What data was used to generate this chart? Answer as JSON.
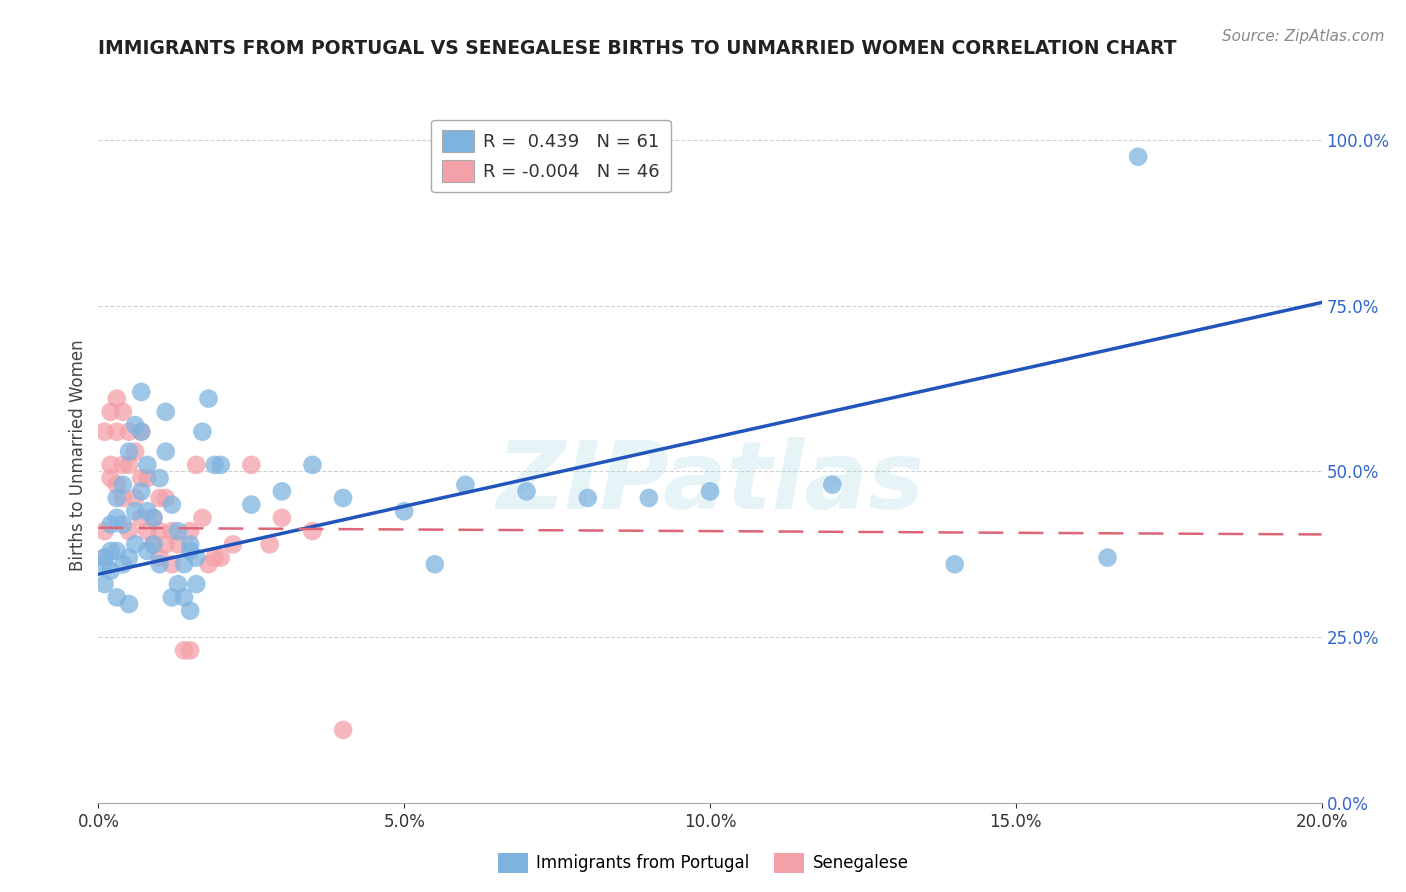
{
  "title": "IMMIGRANTS FROM PORTUGAL VS SENEGALESE BIRTHS TO UNMARRIED WOMEN CORRELATION CHART",
  "source": "Source: ZipAtlas.com",
  "ylabel": "Births to Unmarried Women",
  "xlim": [
    0.0,
    0.2
  ],
  "ylim": [
    0.0,
    1.05
  ],
  "blue_R": 0.439,
  "blue_N": 61,
  "pink_R": -0.004,
  "pink_N": 46,
  "legend_label_blue": "Immigrants from Portugal",
  "legend_label_pink": "Senegalese",
  "blue_color": "#7EB3E0",
  "pink_color": "#F4A0A8",
  "trend_blue": "#2255BB",
  "trend_pink": "#DD6677",
  "blue_trend_x0": 0.0,
  "blue_trend_y0": 0.345,
  "blue_trend_x1": 0.2,
  "blue_trend_y1": 0.755,
  "pink_trend_x0": 0.0,
  "pink_trend_y0": 0.415,
  "pink_trend_x1": 0.2,
  "pink_trend_y1": 0.405,
  "blue_x": [
    0.001,
    0.001,
    0.001,
    0.002,
    0.002,
    0.002,
    0.003,
    0.003,
    0.003,
    0.003,
    0.004,
    0.004,
    0.004,
    0.005,
    0.005,
    0.005,
    0.006,
    0.006,
    0.006,
    0.007,
    0.007,
    0.007,
    0.008,
    0.008,
    0.008,
    0.009,
    0.009,
    0.01,
    0.01,
    0.011,
    0.011,
    0.012,
    0.012,
    0.013,
    0.013,
    0.014,
    0.014,
    0.015,
    0.015,
    0.016,
    0.016,
    0.017,
    0.018,
    0.019,
    0.02,
    0.025,
    0.03,
    0.035,
    0.04,
    0.05,
    0.055,
    0.06,
    0.07,
    0.08,
    0.09,
    0.1,
    0.12,
    0.14,
    0.165,
    0.015,
    0.17
  ],
  "blue_y": [
    0.37,
    0.33,
    0.36,
    0.38,
    0.42,
    0.35,
    0.31,
    0.38,
    0.43,
    0.46,
    0.36,
    0.42,
    0.48,
    0.3,
    0.37,
    0.53,
    0.39,
    0.44,
    0.57,
    0.47,
    0.56,
    0.62,
    0.51,
    0.44,
    0.38,
    0.43,
    0.39,
    0.36,
    0.49,
    0.53,
    0.59,
    0.45,
    0.31,
    0.41,
    0.33,
    0.36,
    0.31,
    0.39,
    0.29,
    0.33,
    0.37,
    0.56,
    0.61,
    0.51,
    0.51,
    0.45,
    0.47,
    0.51,
    0.46,
    0.44,
    0.36,
    0.48,
    0.47,
    0.46,
    0.46,
    0.47,
    0.48,
    0.36,
    0.37,
    0.38,
    0.975
  ],
  "pink_x": [
    0.001,
    0.001,
    0.001,
    0.002,
    0.002,
    0.002,
    0.003,
    0.003,
    0.003,
    0.004,
    0.004,
    0.004,
    0.005,
    0.005,
    0.005,
    0.006,
    0.006,
    0.007,
    0.007,
    0.007,
    0.008,
    0.008,
    0.009,
    0.009,
    0.01,
    0.01,
    0.011,
    0.011,
    0.012,
    0.012,
    0.013,
    0.014,
    0.015,
    0.016,
    0.017,
    0.018,
    0.019,
    0.02,
    0.022,
    0.025,
    0.028,
    0.03,
    0.035,
    0.04,
    0.015,
    0.01
  ],
  "pink_y": [
    0.37,
    0.41,
    0.56,
    0.59,
    0.51,
    0.49,
    0.56,
    0.61,
    0.48,
    0.51,
    0.59,
    0.46,
    0.41,
    0.51,
    0.56,
    0.46,
    0.53,
    0.49,
    0.43,
    0.56,
    0.41,
    0.49,
    0.39,
    0.43,
    0.46,
    0.41,
    0.46,
    0.39,
    0.36,
    0.41,
    0.39,
    0.23,
    0.23,
    0.51,
    0.43,
    0.36,
    0.37,
    0.37,
    0.39,
    0.51,
    0.39,
    0.43,
    0.41,
    0.11,
    0.41,
    0.37
  ],
  "watermark": "ZIPatlas",
  "background_color": "#ffffff",
  "grid_color": "#cccccc"
}
